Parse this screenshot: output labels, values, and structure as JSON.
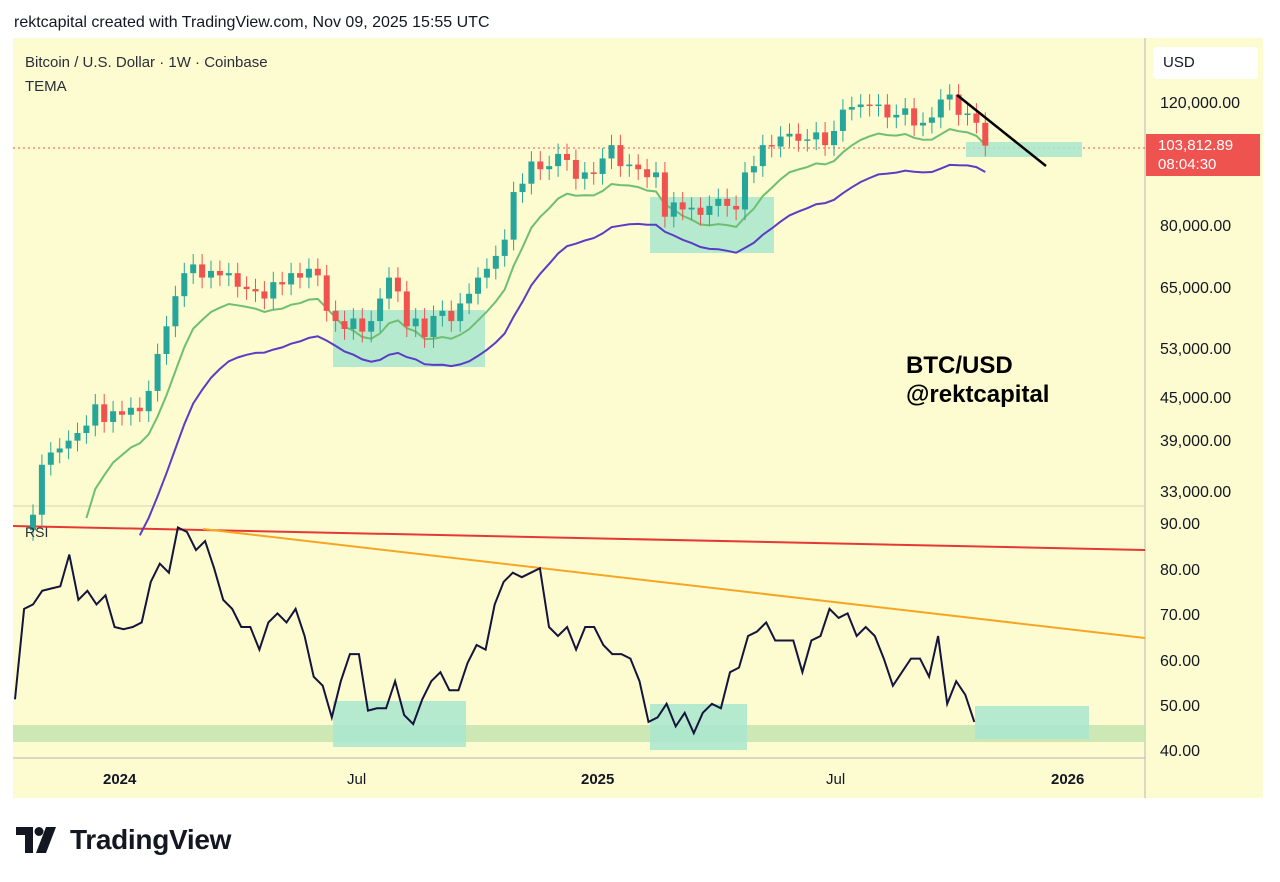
{
  "header": {
    "credit": "rektcapital created with TradingView.com, Nov 09, 2025 15:55 UTC"
  },
  "legend": {
    "symbol": "Bitcoin / U.S. Dollar · 1W · Coinbase",
    "indicator": "TEMA"
  },
  "currency": "USD",
  "last_price": {
    "value": "103,812.89",
    "countdown": "08:04:30"
  },
  "watermark": {
    "line1": "BTC/USD",
    "line2": "@rektcapital"
  },
  "footer": {
    "brand": "TradingView"
  },
  "colors": {
    "background": "#fdfbd0",
    "up_candle": "#26a69a",
    "down_candle": "#ef5350",
    "tema_fast": "#6fbf73",
    "tema_slow": "#5b3cc4",
    "rsi_line": "#14143c",
    "rsi_resistance_red": "#e53935",
    "rsi_trendline_orange": "#f5a623",
    "highlight_box": "#a8e6cf",
    "support_band": "#c8e6b0"
  },
  "chart_data": [
    {
      "type": "candlestick",
      "title": "Bitcoin / U.S. Dollar · 1W · Coinbase",
      "scale": "log",
      "price_axis_ticks": [
        120000,
        80000,
        65000,
        53000,
        45000,
        39000,
        33000
      ],
      "time_axis_ticks": [
        "2024",
        "Jul",
        "2025",
        "Jul",
        "2026"
      ],
      "candles_close": [
        30500,
        36000,
        37500,
        38000,
        39000,
        40000,
        41000,
        44000,
        41500,
        43000,
        42500,
        43500,
        43000,
        46000,
        52000,
        57000,
        63000,
        68000,
        70000,
        67000,
        68500,
        67500,
        68000,
        65000,
        64500,
        64000,
        62500,
        66000,
        65500,
        68000,
        67000,
        69000,
        67500,
        60000,
        58000,
        56500,
        58500,
        56000,
        58000,
        62500,
        67000,
        64000,
        57000,
        58500,
        55000,
        59000,
        60000,
        58000,
        61500,
        63500,
        67000,
        69000,
        72000,
        76000,
        89000,
        91500,
        98500,
        96000,
        97000,
        101000,
        99000,
        93000,
        95000,
        94500,
        99500,
        104000,
        97000,
        97500,
        96000,
        93500,
        95000,
        82000,
        86000,
        84000,
        84500,
        82500,
        85000,
        87000,
        85000,
        84000,
        95000,
        97000,
        104000,
        103500,
        107000,
        108000,
        105500,
        106000,
        108500,
        104000,
        109000,
        117000,
        118000,
        119000,
        118500,
        119000,
        114000,
        115000,
        117500,
        111000,
        112000,
        114000,
        121000,
        123000,
        115000,
        115500,
        112000,
        103812
      ],
      "tema_fast_label": "TEMA (green)",
      "tema_slow_label": "TEMA (purple)",
      "highlighted_zones": [
        "mid-2024 retest",
        "Q2 2025 retest",
        "current retest ~103,000"
      ]
    },
    {
      "type": "line",
      "title": "RSI",
      "ylim": [
        40,
        90
      ],
      "y_ticks": [
        90,
        80,
        70,
        60,
        50,
        40
      ],
      "values": [
        51,
        71,
        72,
        75,
        75.5,
        76,
        83,
        73,
        75,
        72,
        74,
        67,
        66.5,
        67,
        68,
        77,
        81,
        79,
        89,
        88,
        84,
        86,
        80,
        73,
        71,
        67,
        67,
        62,
        68,
        70,
        68,
        71,
        65,
        56,
        54,
        47,
        55,
        61,
        61,
        48.5,
        49,
        49,
        55,
        47.5,
        45.5,
        51,
        55,
        57,
        53,
        53,
        59,
        63,
        62,
        72,
        77,
        79,
        78,
        79,
        80,
        67,
        65,
        67,
        62,
        67,
        67,
        63,
        61,
        61,
        60,
        55,
        46,
        47,
        50,
        45,
        48,
        43.5,
        48,
        50,
        49,
        57,
        58,
        65,
        66,
        68,
        64,
        64,
        64,
        57,
        64,
        65,
        71,
        69,
        70,
        65,
        67,
        65,
        60,
        54,
        57,
        60,
        60,
        56,
        65,
        50,
        55,
        52,
        46
      ],
      "resistance_red": [
        88,
        84
      ],
      "descending_trendline": [
        89,
        65
      ],
      "support_band": [
        43,
        46
      ]
    }
  ]
}
